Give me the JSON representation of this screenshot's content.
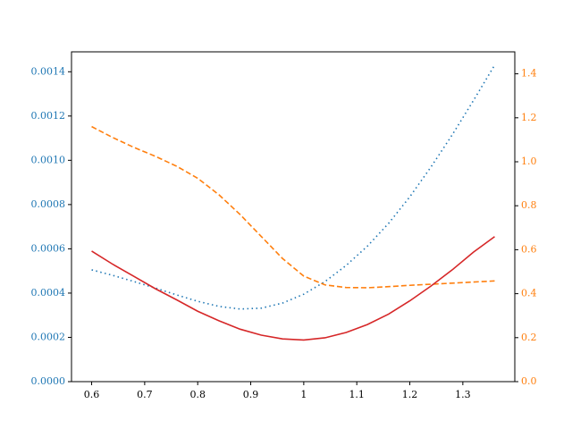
{
  "chart_data": {
    "type": "line",
    "x": [
      0.6,
      0.64,
      0.68,
      0.72,
      0.76,
      0.8,
      0.84,
      0.88,
      0.92,
      0.96,
      1.0,
      1.04,
      1.08,
      1.12,
      1.16,
      1.2,
      1.24,
      1.28,
      1.32,
      1.36
    ],
    "series": [
      {
        "color": "#1f77b4",
        "linestyle": "dotted",
        "axis": "y",
        "values": [
          0.000505,
          0.00048,
          0.000452,
          0.000423,
          0.000392,
          0.000363,
          0.00034,
          0.000328,
          0.000332,
          0.000355,
          0.000395,
          0.000452,
          0.000525,
          0.000612,
          0.000715,
          0.000835,
          0.00097,
          0.001115,
          0.00127,
          0.00143
        ]
      },
      {
        "color": "#ff7f0e",
        "linestyle": "dashed",
        "axis": "y2",
        "values": [
          1.16,
          1.11,
          1.065,
          1.025,
          0.98,
          0.925,
          0.85,
          0.76,
          0.66,
          0.56,
          0.48,
          0.44,
          0.428,
          0.427,
          0.432,
          0.438,
          0.443,
          0.448,
          0.453,
          0.458
        ]
      },
      {
        "color": "#d62728",
        "linestyle": "solid",
        "axis": "y",
        "values": [
          0.00059,
          0.00053,
          0.000475,
          0.00042,
          0.00037,
          0.000318,
          0.000275,
          0.000237,
          0.00021,
          0.000193,
          0.000188,
          0.000198,
          0.000222,
          0.000258,
          0.000305,
          0.000365,
          0.000432,
          0.000505,
          0.000585,
          0.000655
        ]
      }
    ],
    "xlim": [
      0.562,
      1.398
    ],
    "xticks": [
      0.6,
      0.7,
      0.8,
      0.9,
      1.0,
      1.1,
      1.2,
      1.3
    ],
    "ylim": [
      0,
      0.00149
    ],
    "yticks": [
      {
        "value": 0,
        "label": "0.0000"
      },
      {
        "value": 0.0002,
        "label": "0.0002"
      },
      {
        "value": 0.0004,
        "label": "0.0004"
      },
      {
        "value": 0.0006,
        "label": "0.0006"
      },
      {
        "value": 0.0008,
        "label": "0.0008"
      },
      {
        "value": 0.001,
        "label": "0.0010"
      },
      {
        "value": 0.0012,
        "label": "0.0012"
      },
      {
        "value": 0.0014,
        "label": "0.0014"
      }
    ],
    "y2lim": [
      0,
      1.5
    ],
    "y2ticks": [
      {
        "value": 0,
        "label": "0.0"
      },
      0.2,
      0.4,
      0.6,
      0.8,
      {
        "value": 1,
        "label": "1.0"
      },
      1.2,
      1.4
    ],
    "ycolor": "#1f77b4",
    "y2color": "#ff7f0e"
  }
}
